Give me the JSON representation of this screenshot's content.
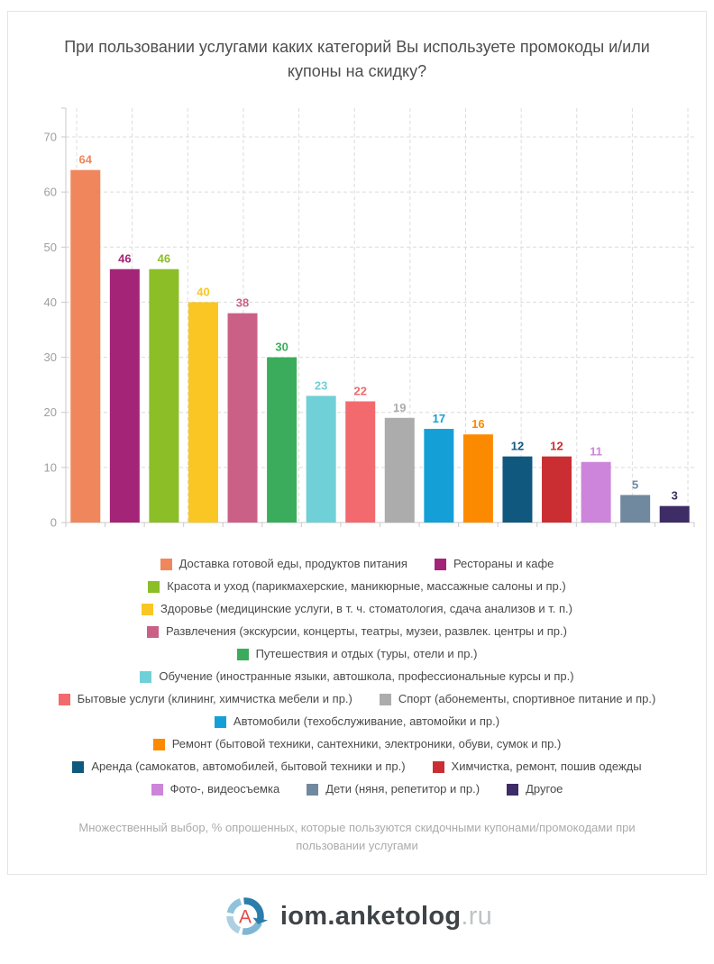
{
  "chart_data": {
    "type": "bar",
    "title": "При пользовании услугами каких категорий Вы используете промокоды и/или купоны на скидку?",
    "categories": [
      "Доставка готовой еды, продуктов питания",
      "Рестораны и кафе",
      "Красота и уход (парикмахерские, маникюрные, массажные салоны и пр.)",
      "Здоровье (медицинские услуги, в т. ч. стоматология, сдача анализов и т. п.)",
      "Развлечения (экскурсии, концерты, театры, музеи, развлек. центры и пр.)",
      "Путешествия и отдых (туры, отели и пр.)",
      "Обучение (иностранные языки, автошкола, профессиональные курсы и пр.)",
      "Бытовые услуги (клининг, химчистка мебели и пр.)",
      "Спорт (абонементы, спортивное питание и пр.)",
      "Автомобили (техобслуживание, автомойки и пр.)",
      "Ремонт (бытовой техники, сантехники, электроники, обуви, сумок и пр.)",
      "Аренда (самокатов, автомобилей, бытовой техники и пр.)",
      "Химчистка, ремонт, пошив одежды",
      "Фото-, видеосъемка",
      "Дети (няня, репетитор и пр.)",
      "Другое"
    ],
    "values": [
      64,
      46,
      46,
      40,
      38,
      30,
      23,
      22,
      19,
      17,
      16,
      12,
      12,
      11,
      5,
      3
    ],
    "colors": [
      "#F0875C",
      "#A42478",
      "#8BBE27",
      "#F9C624",
      "#CB6087",
      "#3BAC5B",
      "#70D0D7",
      "#F26A6D",
      "#ACACAC",
      "#14A0D7",
      "#FC8A00",
      "#10587E",
      "#CB2E32",
      "#CC85DB",
      "#70899E",
      "#3D2C65"
    ],
    "ylabel": "",
    "xlabel": "",
    "ylim": [
      0,
      75
    ],
    "yticks": [
      0,
      10,
      20,
      30,
      40,
      50,
      60,
      70
    ],
    "grid": "dashed horizontal and vertical gridlines",
    "legend_position": "bottom",
    "value_labels": "above each bar, colored as bar",
    "footnote": "Множественный выбор, % опрошенных, которые пользуются скидочными купонами/промокодами при пользовании услугами"
  },
  "footer": {
    "brand": "iom.anketolog",
    "tld": ".ru",
    "logo_letter": "A",
    "logo_colors": {
      "dark_blue": "#2B7DAB",
      "medium_blue": "#7FB6D3",
      "light_blue": "#ACD0E2",
      "soft_blue": "#8FC2DC",
      "letter_red": "#E14B4B"
    }
  },
  "theme": {
    "axis_color": "#C9C9C9",
    "grid_color": "#DCDCDC",
    "tick_label_color": "#9E9E9E",
    "title_color": "#4E4E4E",
    "legend_text_color": "#4A4A4A",
    "footnote_color": "#ABABAB",
    "card_border": "#E4E4E4"
  }
}
